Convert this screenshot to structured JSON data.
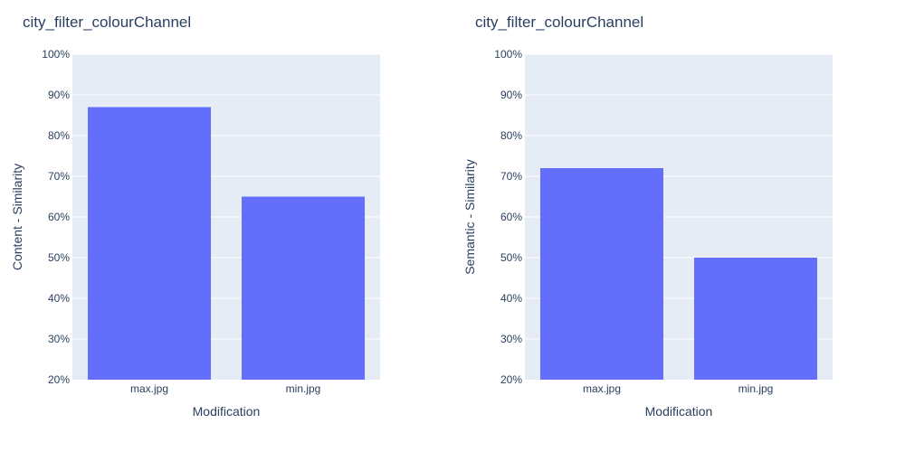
{
  "colors": {
    "plot_bg": "#e5ecf6",
    "grid": "#ffffff",
    "bar": "#636efa",
    "text": "#2a3f5f"
  },
  "chart_data": [
    {
      "type": "bar",
      "title": "city_filter_colourChannel",
      "xlabel": "Modification",
      "ylabel": "Content - Similarity",
      "categories": [
        "max.jpg",
        "min.jpg"
      ],
      "values": [
        87,
        65
      ],
      "ylim": [
        20,
        100
      ],
      "yticks": [
        20,
        30,
        40,
        50,
        60,
        70,
        80,
        90,
        100
      ],
      "ytick_labels": [
        "20%",
        "30%",
        "40%",
        "50%",
        "60%",
        "70%",
        "80%",
        "90%",
        "100%"
      ],
      "grid": true
    },
    {
      "type": "bar",
      "title": "city_filter_colourChannel",
      "xlabel": "Modification",
      "ylabel": "Semantic - Similarity",
      "categories": [
        "max.jpg",
        "min.jpg"
      ],
      "values": [
        72,
        50
      ],
      "ylim": [
        20,
        100
      ],
      "yticks": [
        20,
        30,
        40,
        50,
        60,
        70,
        80,
        90,
        100
      ],
      "ytick_labels": [
        "20%",
        "30%",
        "40%",
        "50%",
        "60%",
        "70%",
        "80%",
        "90%",
        "100%"
      ],
      "grid": true
    }
  ]
}
